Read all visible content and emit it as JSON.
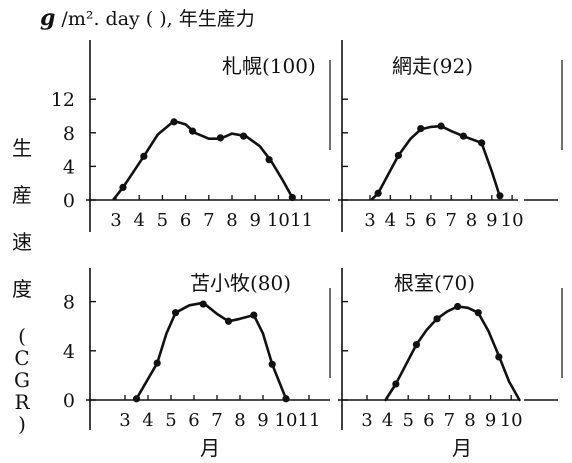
{
  "header": {
    "unit_symbol": "g",
    "unit_text": " /m². day ( ), 年生産力"
  },
  "ylabel_chars": [
    "生",
    "産",
    "速",
    "度",
    "(",
    "C",
    "G",
    "R",
    ")"
  ],
  "xlabel": "月",
  "chart_data": [
    {
      "type": "line",
      "title": "札幌(100)",
      "x_ticks": [
        3,
        4,
        5,
        6,
        7,
        8,
        9,
        10,
        11
      ],
      "y_ticks": [
        0,
        4,
        8,
        12
      ],
      "xlim": [
        2.1,
        11.3
      ],
      "ylim": [
        0,
        12
      ],
      "points": [
        [
          3.3,
          1.5
        ],
        [
          4.2,
          5.2
        ],
        [
          5.5,
          9.3
        ],
        [
          6.3,
          8.2
        ],
        [
          7.5,
          7.4
        ],
        [
          8.5,
          7.6
        ],
        [
          9.6,
          4.8
        ],
        [
          10.6,
          0.3
        ]
      ],
      "curve": [
        [
          2.9,
          0.1
        ],
        [
          3.3,
          1.5
        ],
        [
          4.2,
          5.2
        ],
        [
          4.8,
          7.8
        ],
        [
          5.5,
          9.4
        ],
        [
          6.0,
          9.0
        ],
        [
          6.4,
          8.0
        ],
        [
          7.0,
          7.3
        ],
        [
          7.5,
          7.3
        ],
        [
          8.0,
          7.9
        ],
        [
          8.6,
          7.6
        ],
        [
          9.2,
          6.4
        ],
        [
          9.7,
          4.6
        ],
        [
          10.2,
          2.3
        ],
        [
          10.6,
          0.3
        ]
      ]
    },
    {
      "type": "line",
      "title": "網走(92)",
      "x_ticks": [
        3,
        4,
        5,
        6,
        7,
        8,
        9,
        10
      ],
      "y_ticks": [
        0,
        4,
        8,
        12
      ],
      "xlim": [
        2.1,
        10.8
      ],
      "ylim": [
        0,
        12
      ],
      "points": [
        [
          3.4,
          0.8
        ],
        [
          4.4,
          5.3
        ],
        [
          5.5,
          8.5
        ],
        [
          6.5,
          8.8
        ],
        [
          7.6,
          7.6
        ],
        [
          8.5,
          6.8
        ],
        [
          9.4,
          0.5
        ]
      ],
      "curve": [
        [
          3.1,
          0.1
        ],
        [
          3.4,
          0.8
        ],
        [
          4.4,
          5.3
        ],
        [
          5.0,
          7.3
        ],
        [
          5.5,
          8.4
        ],
        [
          6.0,
          8.7
        ],
        [
          6.5,
          8.8
        ],
        [
          7.0,
          8.2
        ],
        [
          7.6,
          7.6
        ],
        [
          8.5,
          6.8
        ],
        [
          9.0,
          3.4
        ],
        [
          9.4,
          0.4
        ]
      ]
    },
    {
      "type": "line",
      "title": "苫小牧(80)",
      "x_ticks": [
        3,
        4,
        5,
        6,
        7,
        8,
        9,
        10,
        11
      ],
      "y_ticks": [
        0,
        4,
        8
      ],
      "xlim": [
        2.1,
        11.3
      ],
      "ylim": [
        0,
        11
      ],
      "points": [
        [
          3.5,
          0.1
        ],
        [
          4.4,
          3.0
        ],
        [
          5.2,
          7.1
        ],
        [
          6.4,
          7.8
        ],
        [
          7.5,
          6.4
        ],
        [
          8.6,
          6.9
        ],
        [
          9.4,
          2.9
        ],
        [
          10.0,
          0.1
        ]
      ],
      "curve": [
        [
          3.5,
          0.1
        ],
        [
          4.4,
          3.0
        ],
        [
          4.8,
          5.4
        ],
        [
          5.2,
          7.1
        ],
        [
          5.8,
          7.7
        ],
        [
          6.4,
          7.9
        ],
        [
          7.0,
          7.0
        ],
        [
          7.5,
          6.4
        ],
        [
          8.0,
          6.6
        ],
        [
          8.6,
          6.9
        ],
        [
          9.0,
          5.4
        ],
        [
          9.4,
          2.9
        ],
        [
          10.0,
          0.1
        ]
      ]
    },
    {
      "type": "line",
      "title": "根室(70)",
      "x_ticks": [
        3,
        4,
        5,
        6,
        7,
        8,
        9,
        10
      ],
      "y_ticks": [
        0,
        4,
        8
      ],
      "xlim": [
        2.1,
        10.8
      ],
      "ylim": [
        0,
        11
      ],
      "points": [
        [
          4.4,
          1.3
        ],
        [
          5.4,
          4.5
        ],
        [
          6.4,
          6.6
        ],
        [
          7.4,
          7.6
        ],
        [
          8.4,
          7.1
        ],
        [
          9.4,
          3.5
        ]
      ],
      "curve": [
        [
          3.9,
          0.0
        ],
        [
          4.4,
          1.3
        ],
        [
          4.9,
          2.9
        ],
        [
          5.4,
          4.5
        ],
        [
          5.9,
          5.7
        ],
        [
          6.4,
          6.6
        ],
        [
          6.9,
          7.2
        ],
        [
          7.4,
          7.6
        ],
        [
          7.9,
          7.5
        ],
        [
          8.4,
          7.1
        ],
        [
          8.9,
          5.6
        ],
        [
          9.4,
          3.6
        ],
        [
          9.9,
          1.5
        ],
        [
          10.4,
          0.0
        ]
      ]
    }
  ]
}
